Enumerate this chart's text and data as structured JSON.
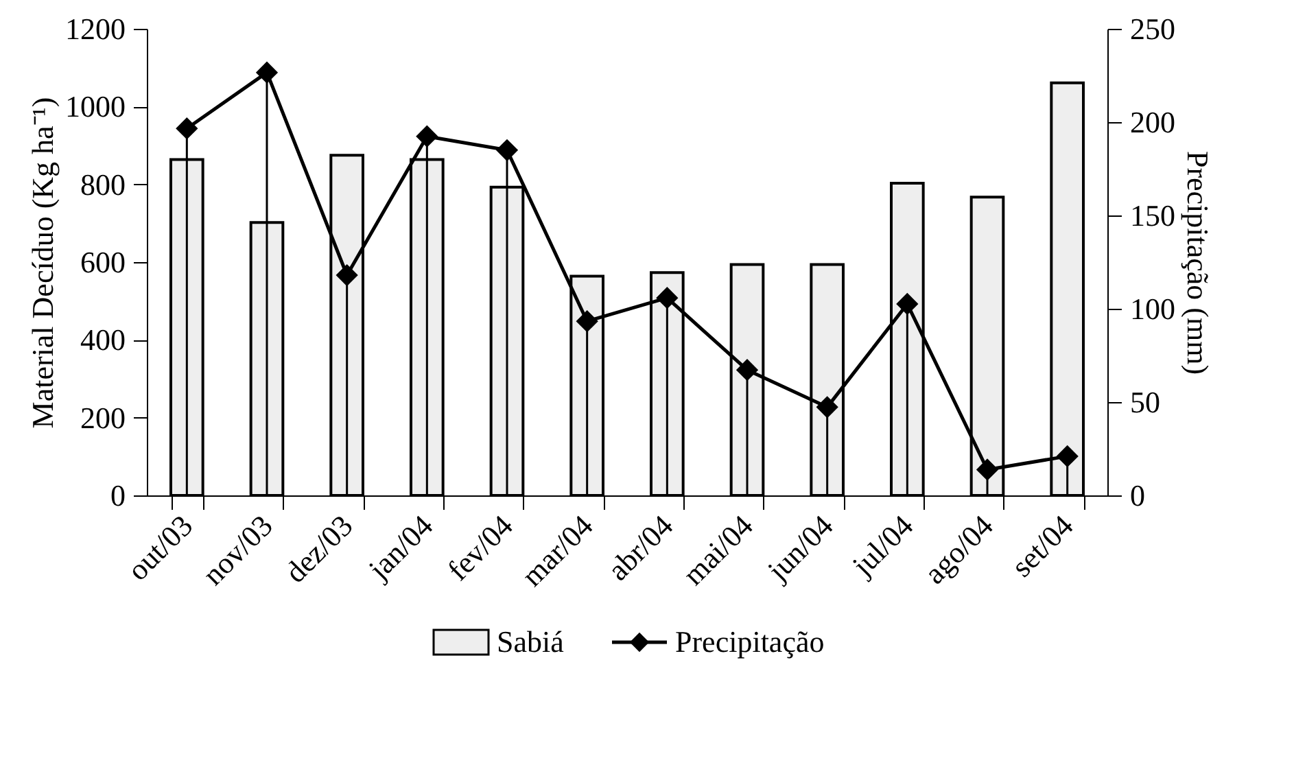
{
  "chart_data": {
    "type": "bar",
    "categories": [
      "out/03",
      "nov/03",
      "dez/03",
      "jan/04",
      "fev/04",
      "mar/04",
      "abr/04",
      "mai/04",
      "jun/04",
      "jul/04",
      "ago/04",
      "set/04"
    ],
    "ylabel": "Material Decíduo (Kg ha⁻¹)",
    "y2label": "Precipitação (mm)",
    "ylim": [
      0,
      1200
    ],
    "yticks": [
      0,
      200,
      400,
      600,
      800,
      1000,
      1200
    ],
    "y2lim": [
      0,
      250
    ],
    "y2ticks": [
      0,
      50,
      100,
      150,
      200,
      250
    ],
    "grid": false,
    "legend": "bottom",
    "series": [
      {
        "name": "Sabiá",
        "type": "bar",
        "color": "#eeeeee",
        "values": [
          864,
          702,
          875,
          864,
          793,
          564,
          573,
          594,
          594,
          803,
          767,
          1061
        ]
      },
      {
        "name": "Precipitação",
        "type": "line",
        "axis": "y2",
        "color": "#000000",
        "marker": "diamond",
        "line_style": "solid",
        "values": [
          196.6,
          226.6,
          118,
          192.4,
          185,
          93.3,
          105.8,
          67.2,
          47.3,
          102.6,
          13.8,
          21
        ],
        "errors": [
          [
            0,
            196.6
          ],
          [
            0,
            226.6
          ],
          [
            0,
            118
          ],
          [
            0,
            192.4
          ],
          [
            0,
            185
          ],
          [
            0,
            93.3
          ],
          [
            0,
            105.8
          ],
          [
            0,
            67.2
          ],
          [
            0,
            47.3
          ],
          [
            0,
            102.6
          ],
          [
            0,
            13.8
          ],
          [
            0,
            21
          ]
        ]
      }
    ]
  }
}
